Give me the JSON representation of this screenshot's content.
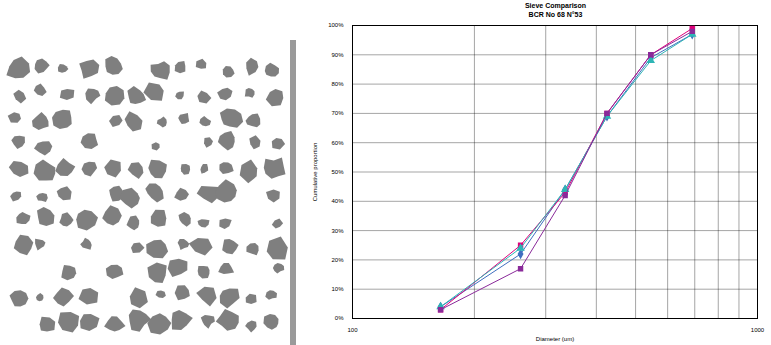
{
  "chart_data": {
    "type": "line",
    "title": "Sieve Comparison",
    "subtitle": "BCR No 68 N°53",
    "x_label": "Diameter (um)",
    "y_label": "Cumulative proportion",
    "log": "x",
    "grid": true,
    "x": [
      165,
      260,
      335,
      425,
      545,
      690
    ],
    "xlim": [
      100,
      1000
    ],
    "xticks": [
      100,
      1000
    ],
    "ylim": [
      0,
      100
    ],
    "yticks": [
      {
        "value": 0,
        "label": "0%"
      },
      {
        "value": 10,
        "label": "10%"
      },
      {
        "value": 20,
        "label": "20%"
      },
      {
        "value": 30,
        "label": "30%"
      },
      {
        "value": 40,
        "label": "40%"
      },
      {
        "value": 50,
        "label": "50%"
      },
      {
        "value": 60,
        "label": "60%"
      },
      {
        "value": 70,
        "label": "70%"
      },
      {
        "value": 80,
        "label": "80%"
      },
      {
        "value": 90,
        "label": "90%"
      },
      {
        "value": 100,
        "label": "100%"
      }
    ],
    "series": [
      {
        "color": "#3f6fbf",
        "marker": "diamond",
        "values": [
          4,
          22,
          44,
          69,
          89,
          97
        ]
      },
      {
        "color": "#e0007a",
        "marker": "square",
        "values": [
          3,
          25,
          43,
          70,
          90,
          99
        ]
      },
      {
        "color": "#2fb5b5",
        "marker": "triangle",
        "values": [
          4,
          24,
          44,
          69,
          88,
          97
        ]
      },
      {
        "color": "#8a2a9a",
        "marker": "square",
        "values": [
          3,
          17,
          42,
          70,
          90,
          98
        ]
      }
    ]
  }
}
